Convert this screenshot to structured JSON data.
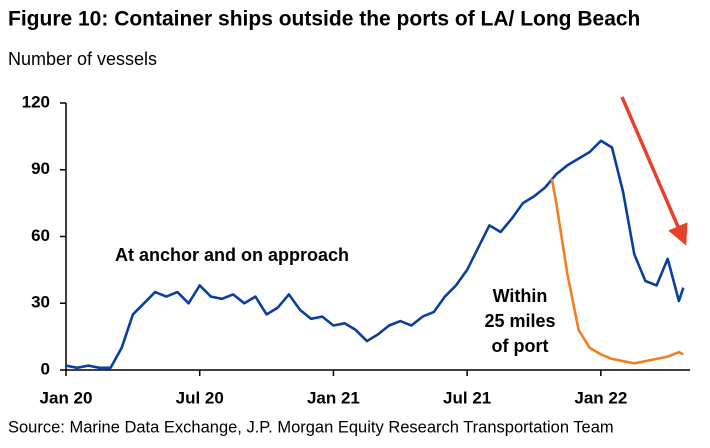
{
  "chart_data": {
    "type": "line",
    "title": "Figure 10: Container ships outside the ports of LA/ Long Beach",
    "subtitle": "Number of vessels",
    "source": "Source: Marine Data Exchange, J.P. Morgan Equity Research Transportation  Team",
    "annotations": [
      {
        "lines": [
          "At anchor and on approach"
        ]
      },
      {
        "lines": [
          "Within",
          "25 miles",
          "of port"
        ]
      }
    ],
    "xlim": [
      0,
      28
    ],
    "xticks": [
      {
        "value": 0,
        "label": "Jan 20"
      },
      {
        "value": 6,
        "label": "Jul 20"
      },
      {
        "value": 12,
        "label": "Jan 21"
      },
      {
        "value": 18,
        "label": "Jul 21"
      },
      {
        "value": 24,
        "label": "Jan 22"
      }
    ],
    "ylim": [
      0,
      120
    ],
    "yticks": [
      0,
      30,
      60,
      90,
      120
    ],
    "series": [
      {
        "color": "#0b3f9e",
        "x": [
          0,
          0.5,
          1,
          1.5,
          2,
          2.5,
          3,
          3.5,
          4,
          4.5,
          5,
          5.5,
          6,
          6.5,
          7,
          7.5,
          8,
          8.5,
          9,
          9.5,
          10,
          10.5,
          11,
          11.5,
          12,
          12.5,
          13,
          13.5,
          14,
          14.5,
          15,
          15.5,
          16,
          16.5,
          17,
          17.5,
          18,
          18.5,
          19,
          19.5,
          20,
          20.5,
          21,
          21.5,
          22,
          22.5,
          23,
          23.5,
          24,
          24.5,
          25,
          25.5,
          26,
          26.5,
          27,
          27.5,
          27.7
        ],
        "values": [
          2,
          1,
          2,
          1,
          1,
          10,
          25,
          30,
          35,
          33,
          35,
          30,
          38,
          33,
          32,
          34,
          30,
          33,
          25,
          28,
          34,
          27,
          23,
          24,
          20,
          21,
          18,
          13,
          16,
          20,
          22,
          20,
          24,
          26,
          33,
          38,
          45,
          55,
          65,
          62,
          68,
          75,
          78,
          82,
          88,
          92,
          95,
          98,
          103,
          100,
          80,
          52,
          40,
          38,
          50,
          31,
          37
        ]
      },
      {
        "color": "#f07f22",
        "x": [
          21.8,
          22,
          22.5,
          23,
          23.5,
          24,
          24.5,
          25,
          25.5,
          26,
          26.5,
          27,
          27.5,
          27.7
        ],
        "values": [
          86,
          75,
          43,
          18,
          10,
          7,
          5,
          4,
          3,
          4,
          5,
          6,
          8,
          7
        ]
      }
    ]
  }
}
